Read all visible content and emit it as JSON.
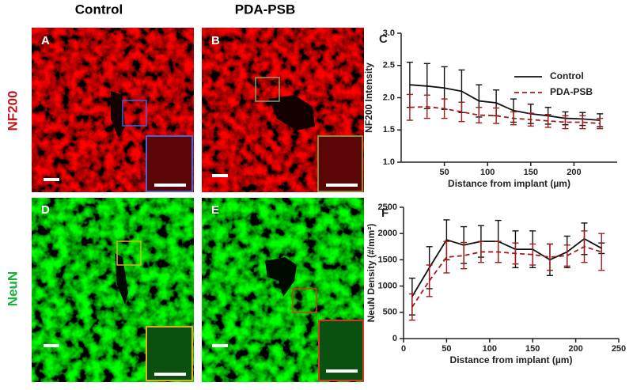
{
  "figure": {
    "columns": [
      "Control",
      "PDA-PSB"
    ],
    "rows": [
      "NF200",
      "NeuN"
    ],
    "panels": [
      "A",
      "B",
      "D",
      "E"
    ]
  },
  "chart_data": [
    {
      "type": "line",
      "panel": "C",
      "xlabel": "Distance from implant (µm)",
      "ylabel": "NF200 Intensity",
      "x": [
        10,
        30,
        50,
        70,
        90,
        110,
        130,
        150,
        170,
        190,
        210,
        230
      ],
      "series": [
        {
          "name": "Control",
          "color": "#111111",
          "dashed": false,
          "values": [
            2.2,
            2.18,
            2.15,
            2.1,
            1.95,
            1.92,
            1.8,
            1.75,
            1.72,
            1.68,
            1.67,
            1.65
          ],
          "errors": [
            0.35,
            0.35,
            0.33,
            0.33,
            0.25,
            0.2,
            0.18,
            0.15,
            0.13,
            0.1,
            0.1,
            0.1
          ]
        },
        {
          "name": "PDA-PSB",
          "color": "#a01c1c",
          "dashed": true,
          "values": [
            1.85,
            1.86,
            1.83,
            1.78,
            1.73,
            1.72,
            1.68,
            1.66,
            1.64,
            1.62,
            1.62,
            1.6
          ],
          "errors": [
            0.2,
            0.18,
            0.15,
            0.15,
            0.12,
            0.12,
            0.1,
            0.1,
            0.1,
            0.1,
            0.1,
            0.08
          ]
        }
      ],
      "xlim": [
        0,
        250
      ],
      "xticks": [
        50,
        100,
        150,
        200
      ],
      "ylim": [
        1.0,
        3.0
      ],
      "yticks": [
        {
          "value": 1.0,
          "label": "1.0"
        },
        1.5,
        {
          "value": 2.0,
          "label": "2.0"
        },
        2.5,
        {
          "value": 3.0,
          "label": "3.0"
        }
      ],
      "legend": "upper right"
    },
    {
      "type": "line",
      "panel": "F",
      "xlabel": "Distance from implant (µm)",
      "ylabel": "NeuN Density (#/mm²)",
      "x": [
        10,
        30,
        50,
        70,
        90,
        110,
        130,
        150,
        170,
        190,
        210,
        230
      ],
      "series": [
        {
          "color": "#111111",
          "dashed": false,
          "values": [
            800,
            1350,
            1880,
            1780,
            1850,
            1850,
            1700,
            1700,
            1500,
            1650,
            1900,
            1720
          ],
          "errors": [
            350,
            400,
            380,
            350,
            300,
            400,
            350,
            350,
            300,
            300,
            300,
            100
          ]
        },
        {
          "color": "#a01c1c",
          "dashed": true,
          "values": [
            600,
            1100,
            1550,
            1580,
            1650,
            1650,
            1620,
            1600,
            1550,
            1580,
            1750,
            1650
          ],
          "errors": [
            250,
            300,
            300,
            250,
            200,
            200,
            200,
            200,
            250,
            200,
            300,
            350
          ]
        }
      ],
      "xlim": [
        0,
        250
      ],
      "xticks": [
        0,
        50,
        100,
        150,
        200,
        250
      ],
      "ylim": [
        0,
        2500
      ],
      "yticks": [
        0,
        500,
        1000,
        1500,
        2000,
        2500
      ],
      "legend": false
    }
  ]
}
